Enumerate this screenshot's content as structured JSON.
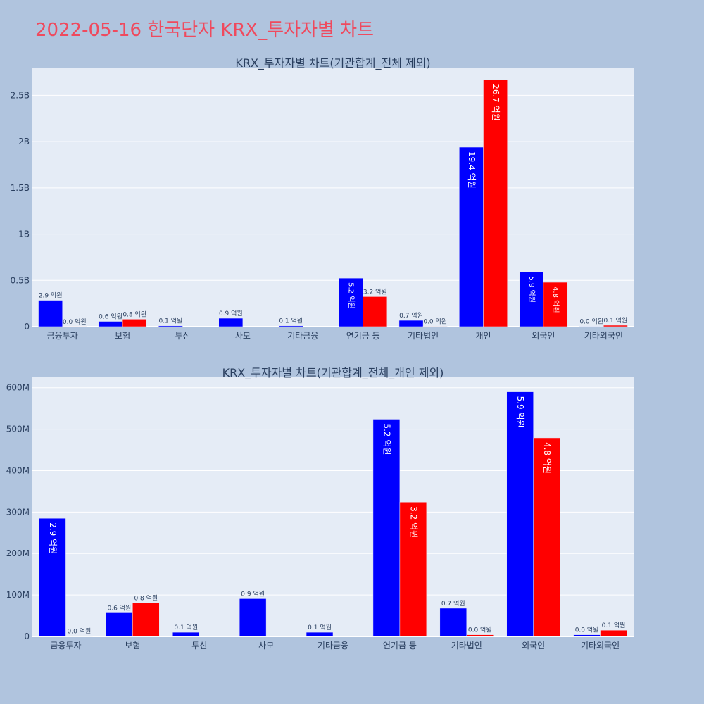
{
  "page": {
    "title": "2022-05-16 한국단자 KRX_투자자별 차트"
  },
  "colors": {
    "background": "#b0c4de",
    "plot_background": "#e5ecf6",
    "title": "#ef4a5e",
    "text": "#2a3f5f",
    "series_a": "#0000ff",
    "series_b": "#ff0000"
  },
  "chart_data": [
    {
      "type": "bar",
      "title": "KRX_투자자별 차트(기관합계_전체 제외)",
      "categories": [
        "금융투자",
        "보험",
        "투신",
        "사모",
        "기타금융",
        "연기금 등",
        "기타법인",
        "개인",
        "외국인",
        "기타외국인"
      ],
      "y_tick_values": [
        0,
        500000000,
        1000000000,
        1500000000,
        2000000000,
        2500000000
      ],
      "y_tick_labels": [
        "0",
        "0.5B",
        "1B",
        "1.5B",
        "2B",
        "2.5B"
      ],
      "ylim": [
        0,
        2800000000
      ],
      "grid": true,
      "series": [
        {
          "color": "#0000ff",
          "values": [
            285000000,
            57000000,
            10000000,
            91000000,
            10000000,
            524000000,
            68000000,
            1940000000,
            590000000,
            4000000
          ],
          "labels": [
            "2.9 억원",
            "0.6 억원",
            "0.1 억원",
            "0.9 억원",
            "0.1 억원",
            "5.2 억원",
            "0.7 억원",
            "19.4 억원",
            "5.9 억원",
            "0.0 억원"
          ]
        },
        {
          "color": "#ff0000",
          "values": [
            1000000,
            81000000,
            0,
            0,
            0,
            324000000,
            4000000,
            2670000000,
            479000000,
            15000000
          ],
          "labels": [
            "0.0 억원",
            "0.8 억원",
            "",
            "",
            "",
            "3.2 억원",
            "0.0 억원",
            "26.7 억원",
            "4.8 억원",
            "0.1 억원"
          ]
        }
      ]
    },
    {
      "type": "bar",
      "title": "KRX_투자자별 차트(기관합계_전체_개인 제외)",
      "categories": [
        "금융투자",
        "보험",
        "투신",
        "사모",
        "기타금융",
        "연기금 등",
        "기타법인",
        "외국인",
        "기타외국인"
      ],
      "y_tick_values": [
        0,
        100000000,
        200000000,
        300000000,
        400000000,
        500000000,
        600000000
      ],
      "y_tick_labels": [
        "0",
        "100M",
        "200M",
        "300M",
        "400M",
        "500M",
        "600M"
      ],
      "ylim": [
        0,
        625000000
      ],
      "grid": true,
      "series": [
        {
          "color": "#0000ff",
          "values": [
            285000000,
            57000000,
            10000000,
            91000000,
            10000000,
            524000000,
            68000000,
            590000000,
            4000000
          ],
          "labels": [
            "2.9 억원",
            "0.6 억원",
            "0.1 억원",
            "0.9 억원",
            "0.1 억원",
            "5.2 억원",
            "0.7 억원",
            "5.9 억원",
            "0.0 억원"
          ]
        },
        {
          "color": "#ff0000",
          "values": [
            1000000,
            81000000,
            0,
            0,
            0,
            324000000,
            4000000,
            479000000,
            15000000
          ],
          "labels": [
            "0.0 억원",
            "0.8 억원",
            "",
            "",
            "",
            "3.2 억원",
            "0.0 억원",
            "4.8 억원",
            "0.1 억원"
          ]
        }
      ]
    }
  ]
}
